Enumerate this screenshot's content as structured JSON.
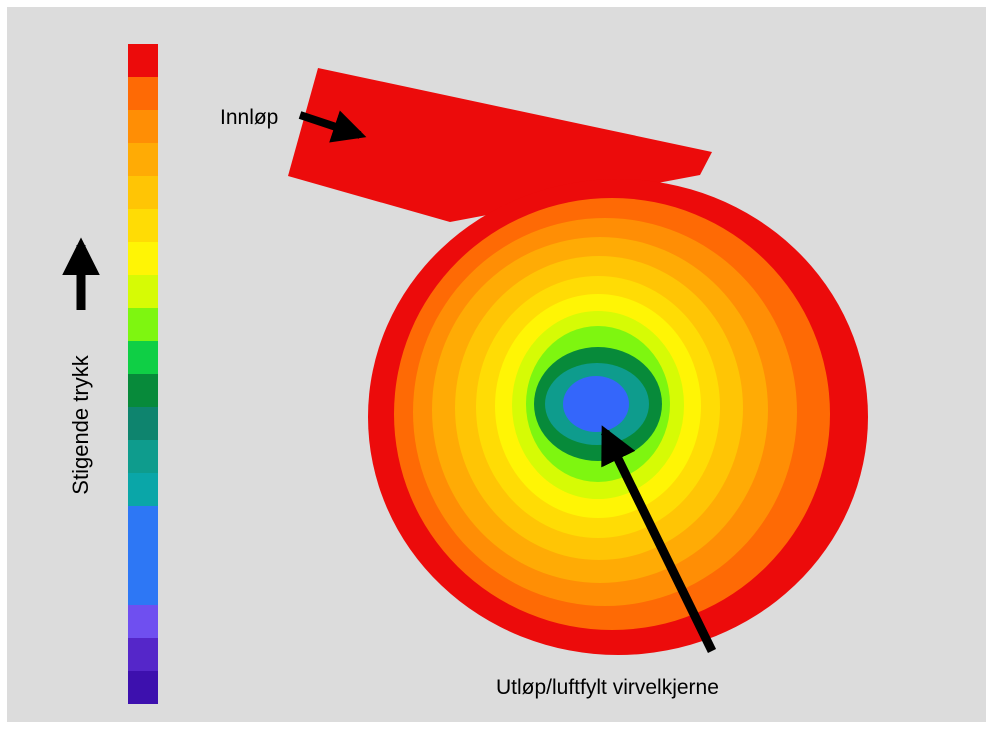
{
  "scale": {
    "label": "Stigende trykk",
    "colors": [
      "#ec0b0b",
      "#fe6a05",
      "#ff8e05",
      "#ffab05",
      "#ffc505",
      "#ffdc05",
      "#fff505",
      "#d6fb05",
      "#7ef610",
      "#0fcf45",
      "#078a3a",
      "#0e846e",
      "#0e9c8d",
      "#0aa6a8",
      "#2d77f5",
      "#3466fb",
      "#6f4ff0",
      "#5526c9",
      "#3d10ae"
    ],
    "weights": [
      1,
      1,
      1,
      1,
      1,
      1,
      1,
      1,
      1,
      1,
      1,
      1,
      1,
      1,
      3,
      0,
      1,
      1,
      1
    ]
  },
  "labels": {
    "inlet": "Innløp",
    "outlet": "Utløp/luftfylt virvelkjerne"
  },
  "contour_colors": [
    "#ec0b0b",
    "#fe6a05",
    "#ff8e05",
    "#ffab05",
    "#ffc505",
    "#ffdc05",
    "#fff505",
    "#d6fb05",
    "#7ef610",
    "#078a3a",
    "#0e9c8d",
    "#3466fb"
  ]
}
